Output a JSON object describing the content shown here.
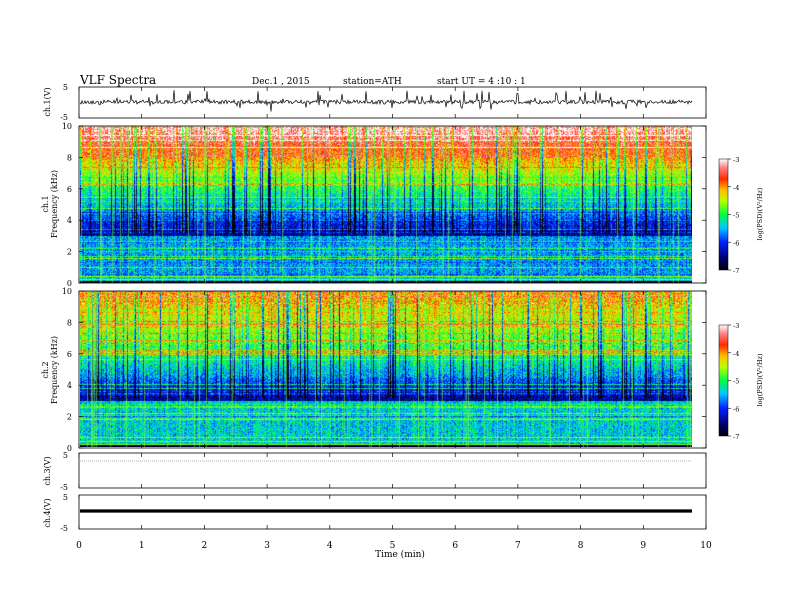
{
  "header": {
    "title": "VLF  Spectra",
    "date": "Dec.1  , 2015",
    "station": "station=ATH",
    "start": "start  UT  =   4  :10 : 1"
  },
  "chart_data": [
    {
      "type": "line",
      "ylabel": "ch.1(V)",
      "ylim": [
        -5,
        5
      ],
      "yticks": [
        "5",
        "-5"
      ],
      "x_range_min": [
        0,
        9.8
      ],
      "description_level": "fluctuating trace around 0 V with spikes"
    },
    {
      "type": "heatmap",
      "ylabel": "ch.1\nFrequency  (kHz)",
      "ylim": [
        0,
        10
      ],
      "yticks": [
        "0",
        "2",
        "4",
        "6",
        "8",
        "10"
      ],
      "colorbar": {
        "label": "log(PSD)(V²/Hz)",
        "range": [
          -7,
          -3
        ],
        "ticks": [
          "-3",
          "-4",
          "-5",
          "-6",
          "-7"
        ]
      }
    },
    {
      "type": "heatmap",
      "ylabel": "ch.2\nFrequency  (kHz)",
      "ylim": [
        0,
        10
      ],
      "yticks": [
        "0",
        "2",
        "4",
        "6",
        "8",
        "10"
      ],
      "colorbar": {
        "label": "log(PSD)(V²/Hz)",
        "range": [
          -7,
          -3
        ],
        "ticks": [
          "-3",
          "-4",
          "-5",
          "-6",
          "-7"
        ]
      }
    },
    {
      "type": "line",
      "ylabel": "ch.3(V)",
      "ylim": [
        -5,
        5
      ],
      "yticks": [
        "5",
        "-5"
      ]
    },
    {
      "type": "line",
      "ylabel": "ch.4(V)",
      "ylim": [
        -5,
        5
      ],
      "yticks": [
        "5",
        "-5"
      ]
    }
  ],
  "xaxis": {
    "label": "Time  (min)",
    "range": [
      0,
      10
    ],
    "ticks": [
      "0",
      "1",
      "2",
      "3",
      "4",
      "5",
      "6",
      "7",
      "8",
      "9",
      "10"
    ]
  }
}
